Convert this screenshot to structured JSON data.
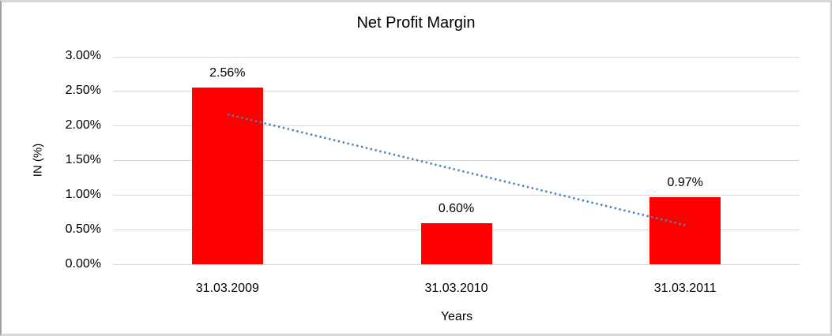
{
  "chart_data": {
    "type": "bar",
    "title": "Net Profit Margin",
    "xlabel": "Years",
    "ylabel": "IN (%)",
    "categories": [
      "31.03.2009",
      "31.03.2010",
      "31.03.2011"
    ],
    "values": [
      2.56,
      0.6,
      0.97
    ],
    "data_labels": [
      "2.56%",
      "0.60%",
      "0.97%"
    ],
    "y_tick_labels": [
      "3.00%",
      "2.50%",
      "2.00%",
      "1.50%",
      "1.00%",
      "0.50%",
      "0.00%"
    ],
    "y_tick_values": [
      3.0,
      2.5,
      2.0,
      1.5,
      1.0,
      0.5,
      0.0
    ],
    "ylim": [
      0,
      3
    ],
    "grid": true,
    "legend_position": "none",
    "colors": {
      "bar": "#ff0000",
      "gridline": "#d9d9d9",
      "text": "#000000",
      "trendline": "#4f81bd",
      "frame_border": "#d8d8d8"
    },
    "trendline": {
      "type": "linear",
      "style": "dotted",
      "start": {
        "category_index": 0,
        "value": 2.17
      },
      "end": {
        "category_index": 2,
        "value": 0.57
      }
    }
  }
}
